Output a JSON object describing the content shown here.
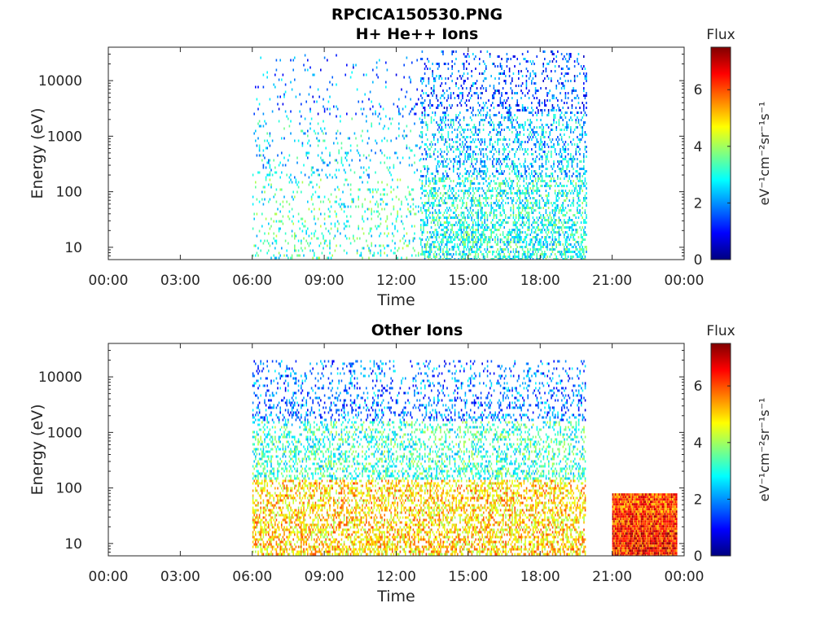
{
  "figure": {
    "title_line1": "RPCICA150530.PNG"
  },
  "colormap": "jet",
  "chart_data": [
    {
      "type": "heatmap",
      "title": "H+ He++ Ions",
      "xlabel": "Time",
      "ylabel": "Energy (eV)",
      "x_ticks": [
        "00:00",
        "03:00",
        "06:00",
        "09:00",
        "12:00",
        "15:00",
        "18:00",
        "21:00",
        "00:00"
      ],
      "x_range_hours": [
        0,
        24
      ],
      "y_scale": "log",
      "y_ticks": [
        10,
        100,
        1000,
        10000
      ],
      "y_tick_labels": [
        "10",
        "100",
        "1000",
        "10000"
      ],
      "ylim": [
        6,
        40000
      ],
      "colorbar": {
        "label": "Flux",
        "units": "eV⁻¹cm⁻²sr⁻¹s⁻¹",
        "ticks": [
          0,
          2,
          4,
          6
        ],
        "tick_labels": [
          "0",
          "2",
          "4",
          "6"
        ],
        "range": [
          0,
          7.5
        ]
      },
      "regions": [
        {
          "t_start": 6.0,
          "t_end": 13.0,
          "e_min": 6,
          "e_max": 30000,
          "density": 0.12,
          "flux_low": 3.2,
          "flux_mid": 2.6,
          "flux_high": 1.8
        },
        {
          "t_start": 13.0,
          "t_end": 19.9,
          "e_min": 6,
          "e_max": 35000,
          "density": 0.45,
          "flux_low": 3.0,
          "flux_mid": 2.4,
          "flux_high": 1.6
        }
      ]
    },
    {
      "type": "heatmap",
      "title": "Other Ions",
      "xlabel": "Time",
      "ylabel": "Energy (eV)",
      "x_ticks": [
        "00:00",
        "03:00",
        "06:00",
        "09:00",
        "12:00",
        "15:00",
        "18:00",
        "21:00",
        "00:00"
      ],
      "x_range_hours": [
        0,
        24
      ],
      "y_scale": "log",
      "y_ticks": [
        10,
        100,
        1000,
        10000
      ],
      "y_tick_labels": [
        "10",
        "100",
        "1000",
        "10000"
      ],
      "ylim": [
        6,
        40000
      ],
      "colorbar": {
        "label": "Flux",
        "units": "eV⁻¹cm⁻²sr⁻¹s⁻¹",
        "ticks": [
          0,
          2,
          4,
          6
        ],
        "tick_labels": [
          "0",
          "2",
          "4",
          "6"
        ],
        "range": [
          0,
          7.5
        ]
      },
      "regions": [
        {
          "t_start": 6.0,
          "t_end": 19.9,
          "e_min": 6,
          "e_max": 20000,
          "density": 0.5,
          "flux_low": 5.0,
          "flux_mid": 3.2,
          "flux_high": 1.8
        },
        {
          "t_start": 21.0,
          "t_end": 23.7,
          "e_min": 6,
          "e_max": 80,
          "density": 1.0,
          "flux_low": 6.4,
          "flux_mid": 6.2,
          "flux_high": 6.0
        }
      ]
    }
  ]
}
